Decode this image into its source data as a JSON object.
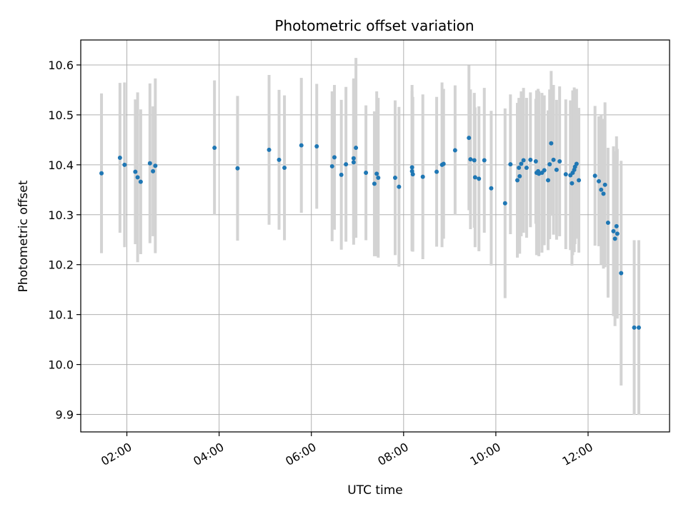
{
  "chart_data": {
    "type": "scatter",
    "title": "Photometric offset variation",
    "xlabel": "UTC time",
    "ylabel": "Photometric offset",
    "x_ticks": [
      "02:00",
      "04:00",
      "06:00",
      "08:00",
      "10:00",
      "12:00"
    ],
    "y_ticks": [
      "9.9",
      "10.0",
      "10.1",
      "10.2",
      "10.3",
      "10.4",
      "10.5",
      "10.6"
    ],
    "xlim": [
      "01:00",
      "13:46"
    ],
    "ylim": [
      9.865,
      10.65
    ],
    "grid": true,
    "marker_color": "#1f77b4",
    "errorbar_color": "#d3d3d3",
    "x": [
      "01:27",
      "01:51",
      "01:57",
      "02:11",
      "02:14",
      "02:18",
      "02:30",
      "02:34",
      "02:37",
      "03:54",
      "04:24",
      "05:05",
      "05:18",
      "05:25",
      "05:47",
      "06:07",
      "06:27",
      "06:30",
      "06:39",
      "06:45",
      "06:55",
      "06:55",
      "06:58",
      "07:11",
      "07:22",
      "07:25",
      "07:27",
      "07:49",
      "07:54",
      "08:11",
      "08:11",
      "08:12",
      "08:25",
      "08:43",
      "08:50",
      "08:52",
      "09:07",
      "09:25",
      "09:27",
      "09:32",
      "09:33",
      "09:38",
      "09:45",
      "09:54",
      "10:12",
      "10:19",
      "10:28",
      "10:30",
      "10:31",
      "10:33",
      "10:36",
      "10:40",
      "10:45",
      "10:52",
      "10:53",
      "10:55",
      "10:56",
      "11:00",
      "11:03",
      "11:08",
      "11:10",
      "11:12",
      "11:15",
      "11:19",
      "11:23",
      "11:31",
      "11:37",
      "11:39",
      "11:40",
      "11:42",
      "11:43",
      "11:45",
      "11:48",
      "12:09",
      "12:14",
      "12:17",
      "12:20",
      "12:22",
      "12:26",
      "12:33",
      "12:35",
      "12:37",
      "12:38",
      "12:43",
      "13:00",
      "13:06"
    ],
    "y": [
      10.383,
      10.414,
      10.4,
      10.386,
      10.375,
      10.366,
      10.403,
      10.387,
      10.398,
      10.434,
      10.393,
      10.43,
      10.41,
      10.394,
      10.439,
      10.437,
      10.397,
      10.415,
      10.38,
      10.401,
      10.405,
      10.413,
      10.434,
      10.384,
      10.362,
      10.382,
      10.374,
      10.374,
      10.356,
      10.395,
      10.387,
      10.381,
      10.376,
      10.386,
      10.4,
      10.402,
      10.429,
      10.454,
      10.411,
      10.409,
      10.375,
      10.372,
      10.409,
      10.353,
      10.323,
      10.401,
      10.369,
      10.394,
      10.377,
      10.402,
      10.409,
      10.394,
      10.41,
      10.407,
      10.384,
      10.387,
      10.382,
      10.384,
      10.389,
      10.369,
      10.401,
      10.443,
      10.41,
      10.39,
      10.407,
      10.381,
      10.379,
      10.363,
      10.384,
      10.39,
      10.396,
      10.402,
      10.369,
      10.378,
      10.367,
      10.35,
      10.342,
      10.36,
      10.284,
      10.267,
      10.252,
      10.277,
      10.262,
      10.183,
      10.074,
      10.074
    ],
    "yerr": [
      0.16,
      0.15,
      0.165,
      0.145,
      0.17,
      0.145,
      0.16,
      0.13,
      0.175,
      0.135,
      0.145,
      0.15,
      0.14,
      0.145,
      0.135,
      0.125,
      0.15,
      0.145,
      0.15,
      0.155,
      0.165,
      0.16,
      0.18,
      0.135,
      0.145,
      0.165,
      0.16,
      0.155,
      0.16,
      0.165,
      0.16,
      0.155,
      0.165,
      0.15,
      0.165,
      0.15,
      0.13,
      0.145,
      0.14,
      0.135,
      0.14,
      0.145,
      0.145,
      0.155,
      0.19,
      0.14,
      0.155,
      0.14,
      0.155,
      0.145,
      0.145,
      0.14,
      0.135,
      0.125,
      0.165,
      0.165,
      0.165,
      0.16,
      0.15,
      0.14,
      0.15,
      0.145,
      0.15,
      0.14,
      0.15,
      0.15,
      0.15,
      0.165,
      0.165,
      0.165,
      0.155,
      0.15,
      0.145,
      0.14,
      0.13,
      0.15,
      0.15,
      0.165,
      0.15,
      0.17,
      0.175,
      0.18,
      0.17,
      0.225,
      0.175,
      0.175
    ]
  }
}
